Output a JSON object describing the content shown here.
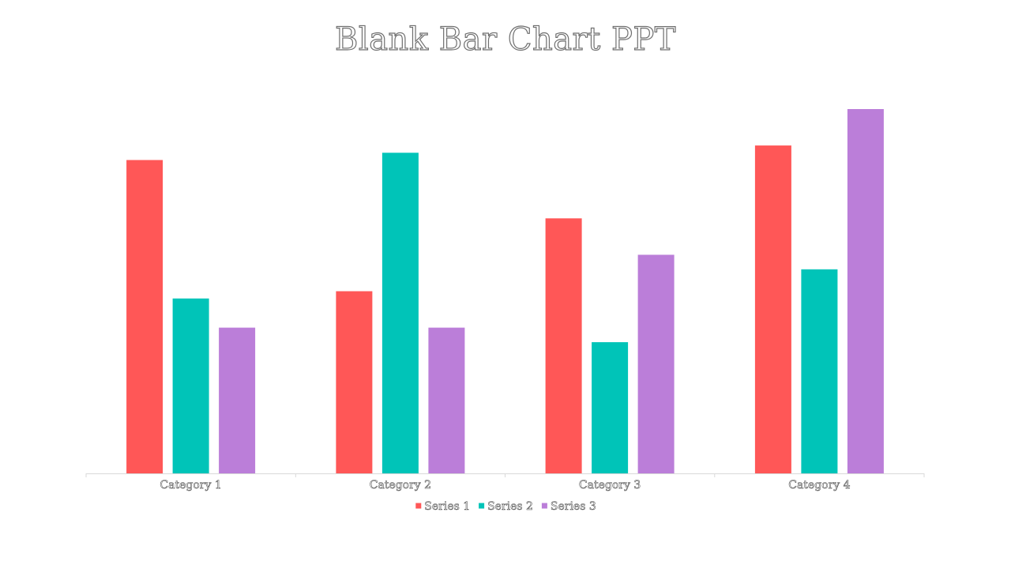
{
  "chart_data": {
    "type": "bar",
    "title": "Blank Bar Chart PPT",
    "xlabel": "",
    "ylabel": "",
    "categories": [
      "Category 1",
      "Category 2",
      "Category 3",
      "Category 4"
    ],
    "series": [
      {
        "name": "Series 1",
        "color": "#ff5757",
        "values": [
          4.3,
          2.5,
          3.5,
          4.5
        ]
      },
      {
        "name": "Series 2",
        "color": "#00c4b8",
        "values": [
          2.4,
          4.4,
          1.8,
          2.8
        ]
      },
      {
        "name": "Series 3",
        "color": "#bb7ed9",
        "values": [
          2.0,
          2.0,
          3.0,
          5.0
        ]
      }
    ],
    "ylim": [
      0,
      5
    ],
    "grid": false,
    "legend": "bottom"
  }
}
